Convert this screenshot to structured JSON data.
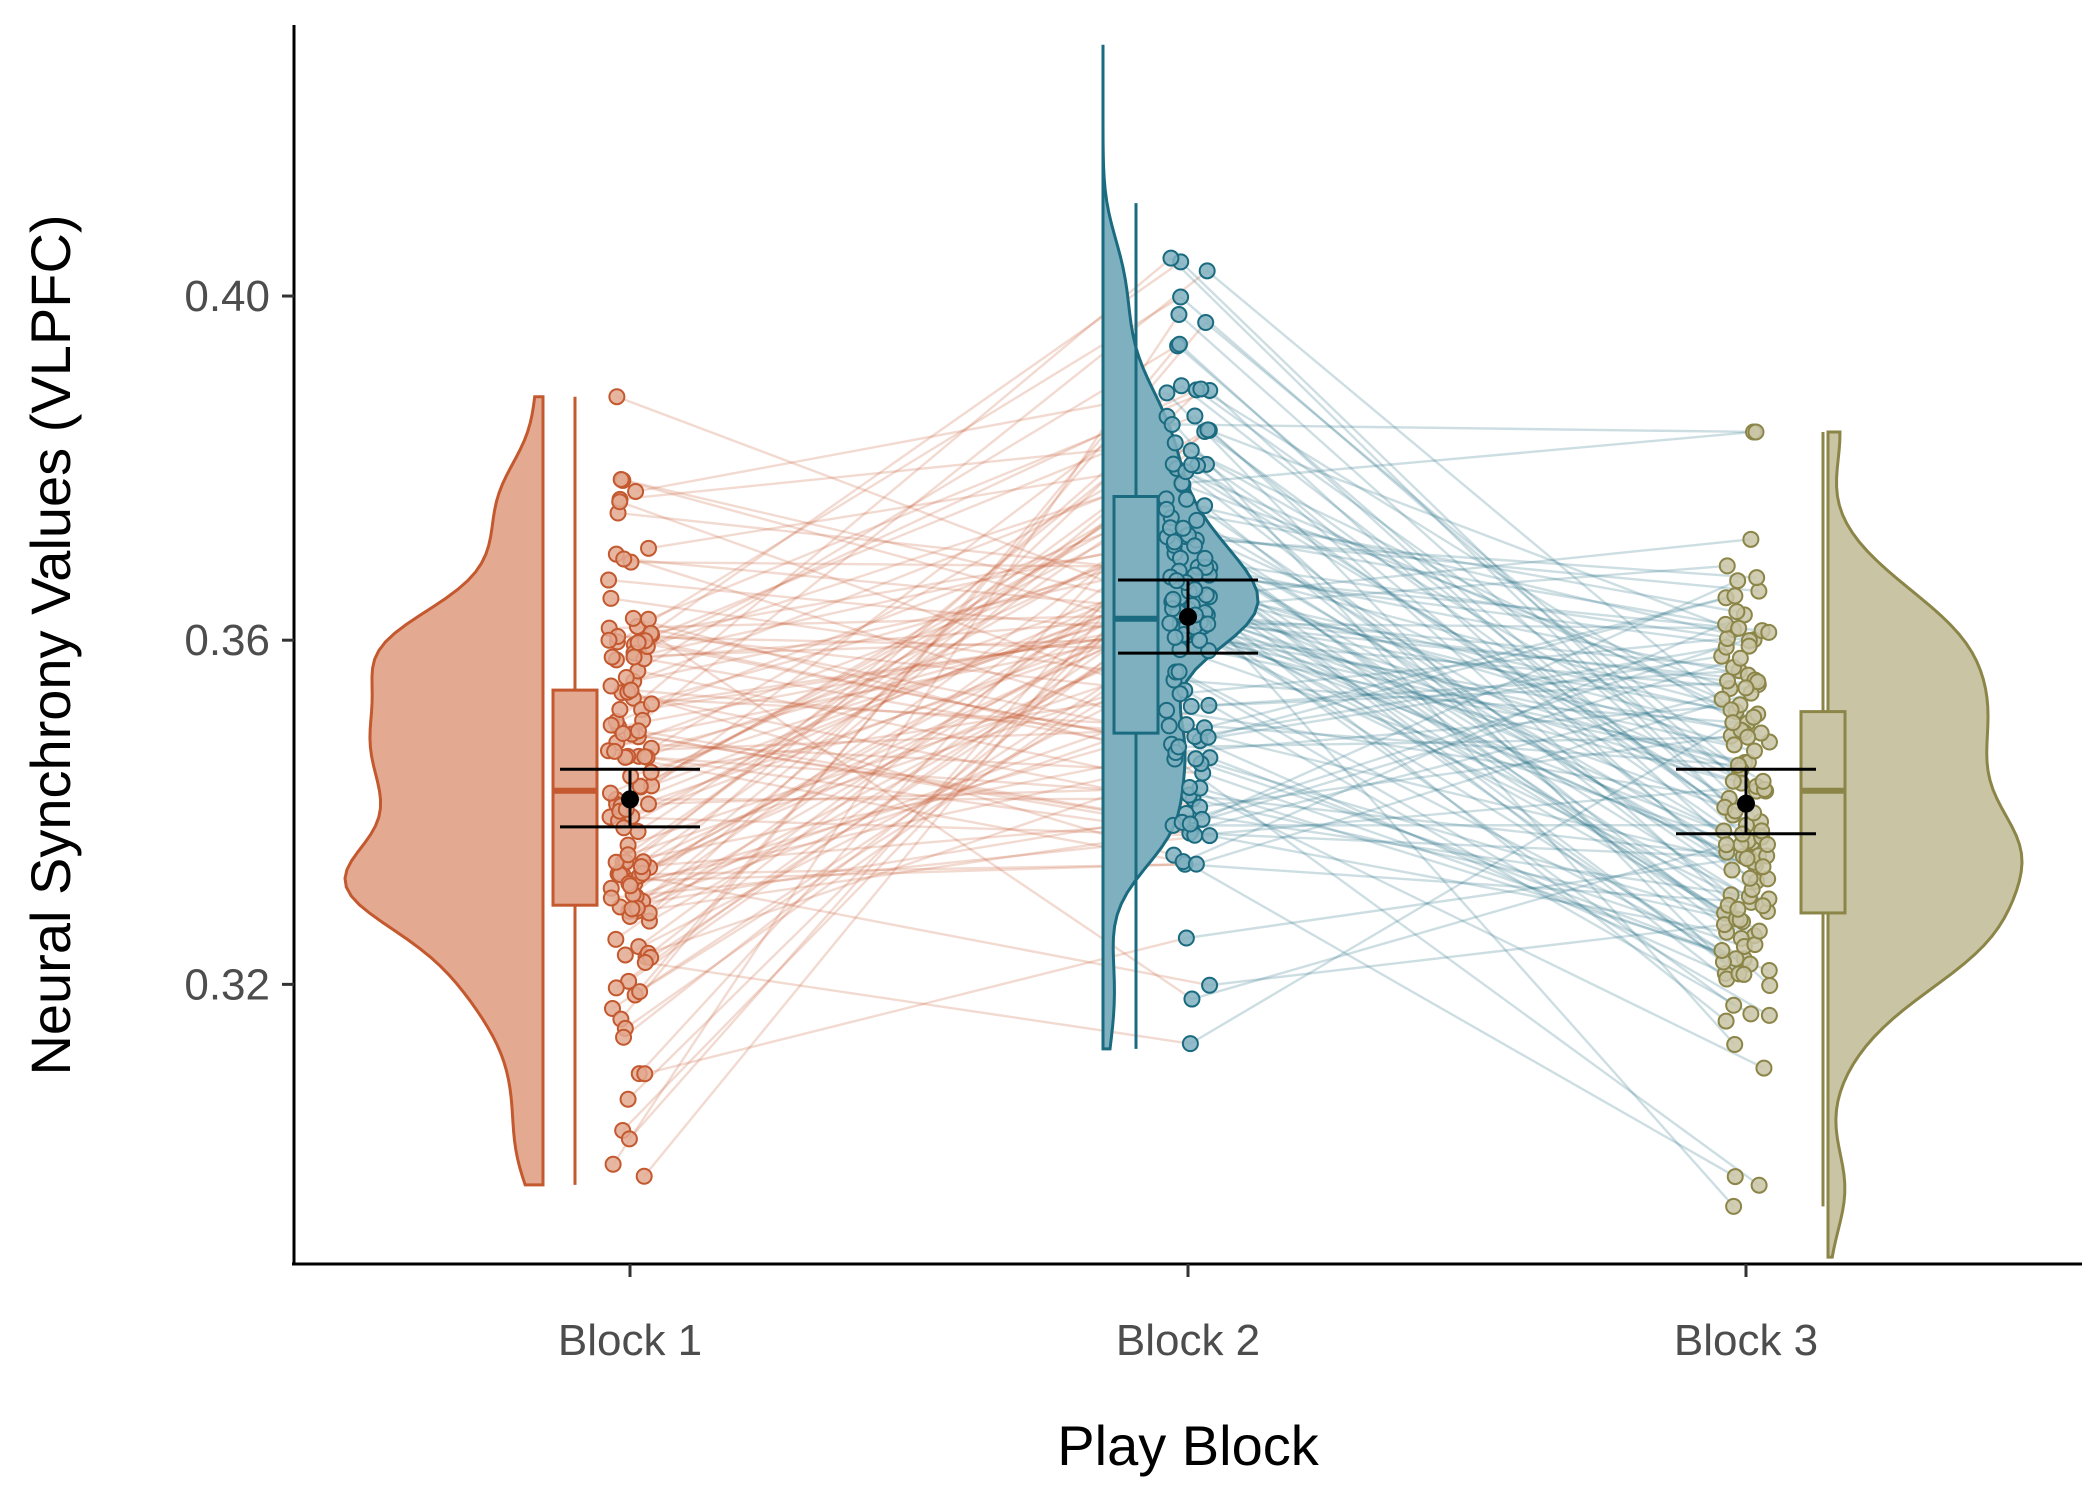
{
  "chart_data": {
    "type": "raincloud",
    "xlabel": "Play Block",
    "ylabel": "Neural Synchrony Values (VLPFC)",
    "categories": [
      "Block 1",
      "Block 2",
      "Block 3"
    ],
    "ylim": [
      0.2875,
      0.4315
    ],
    "yticks": [
      0.32,
      0.36,
      0.4
    ],
    "ytick_labels": [
      "0.32",
      "0.36",
      "0.40"
    ],
    "grid": false,
    "legend": "none",
    "colors": [
      "#c4582e",
      "#1a6b80",
      "#8b8548"
    ],
    "groups": [
      {
        "name": "Block 1",
        "box": {
          "min": 0.2967,
          "q1": 0.3292,
          "median": 0.3425,
          "q3": 0.3542,
          "max": 0.3883
        },
        "mean": 0.3415,
        "ci": [
          0.3383,
          0.345
        ],
        "density_range": [
          0.2967,
          0.3883
        ]
      },
      {
        "name": "Block 2",
        "box": {
          "min": 0.3125,
          "q1": 0.3492,
          "median": 0.3625,
          "q3": 0.3767,
          "max": 0.4108
        },
        "mean": 0.3627,
        "ci": [
          0.3585,
          0.367
        ],
        "density_range": [
          0.3125,
          0.4292
        ]
      },
      {
        "name": "Block 3",
        "box": {
          "min": 0.2942,
          "q1": 0.3283,
          "median": 0.3425,
          "q3": 0.3517,
          "max": 0.3842
        },
        "mean": 0.341,
        "ci": [
          0.3375,
          0.345
        ],
        "density_range": [
          0.2883,
          0.3842
        ]
      }
    ]
  }
}
